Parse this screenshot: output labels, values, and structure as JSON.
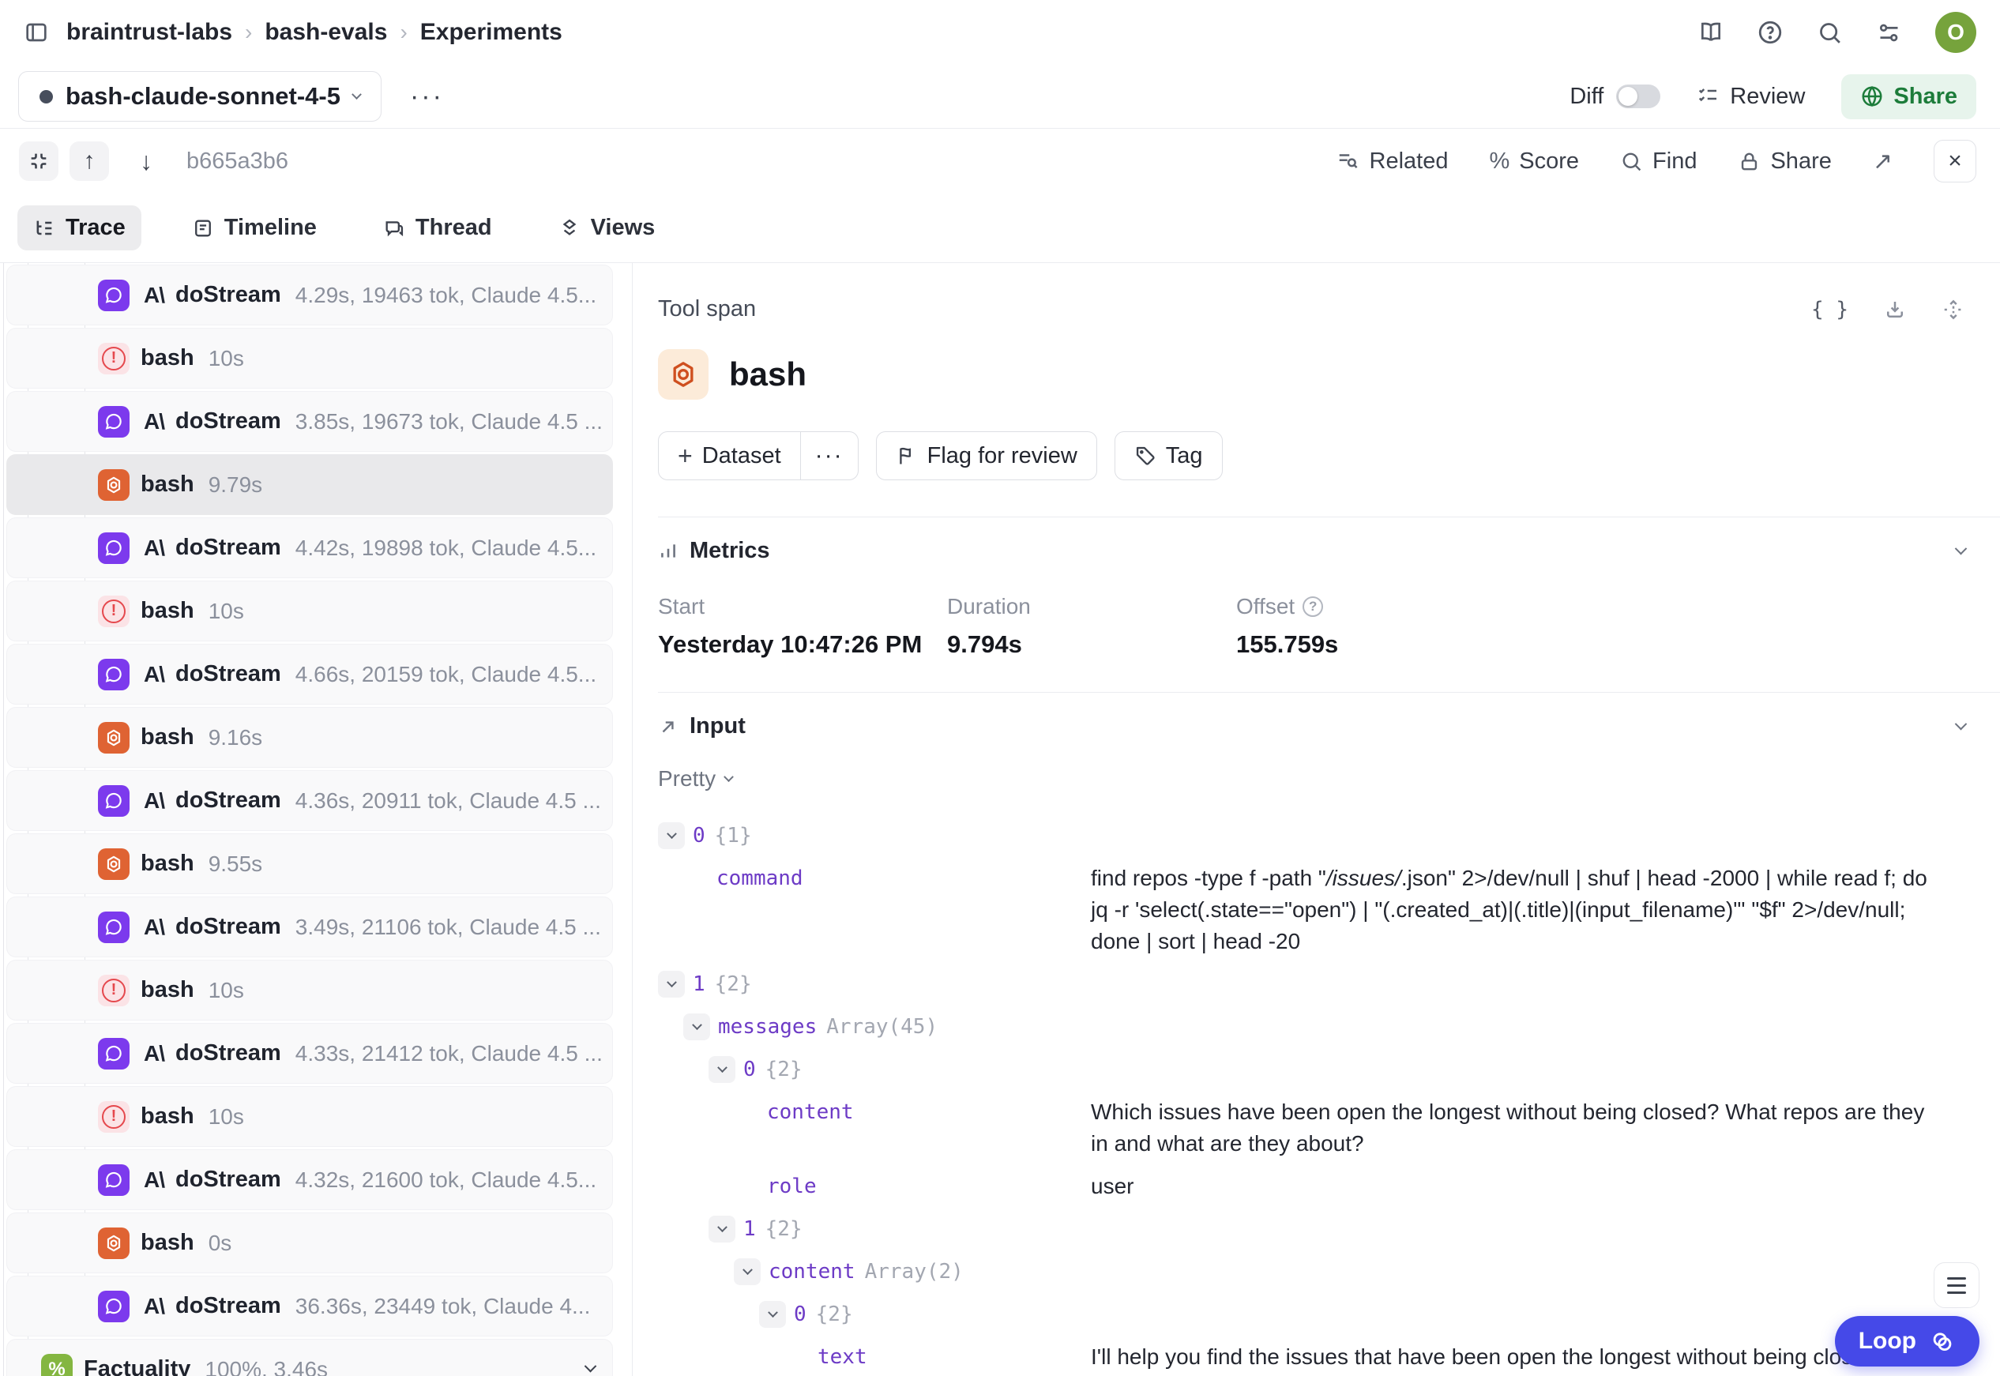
{
  "header": {
    "breadcrumb": [
      "braintrust-labs",
      "bash-evals",
      "Experiments"
    ],
    "separator": "›",
    "avatar_initial": "O"
  },
  "experiment_bar": {
    "name": "bash-claude-sonnet-4-5",
    "more_label": "···",
    "diff_label": "Diff",
    "review_label": "Review",
    "share_label": "Share"
  },
  "trace_toolbar": {
    "span_id": "b665a3b6",
    "up_arrow": "↑",
    "down_arrow": "↓",
    "related_label": "Related",
    "score_label": "Score",
    "score_icon": "%",
    "find_label": "Find",
    "share_label": "Share",
    "external_arrow": "↗",
    "close_glyph": "×"
  },
  "tabs": [
    {
      "label": "Trace",
      "active": true
    },
    {
      "label": "Timeline",
      "active": false
    },
    {
      "label": "Thread",
      "active": false
    },
    {
      "label": "Views",
      "active": false
    }
  ],
  "span_list": {
    "rows": [
      {
        "icon": "model",
        "name": "doStream",
        "detail": "4.29s, 19463 tok, Claude 4.5...",
        "level": 2
      },
      {
        "icon": "error",
        "name": "bash",
        "detail": "10s",
        "level": 2
      },
      {
        "icon": "model",
        "name": "doStream",
        "detail": "3.85s, 19673 tok, Claude 4.5 ...",
        "level": 2
      },
      {
        "icon": "tool",
        "name": "bash",
        "detail": "9.79s",
        "level": 2,
        "selected": true
      },
      {
        "icon": "model",
        "name": "doStream",
        "detail": "4.42s, 19898 tok, Claude 4.5...",
        "level": 2
      },
      {
        "icon": "error",
        "name": "bash",
        "detail": "10s",
        "level": 2
      },
      {
        "icon": "model",
        "name": "doStream",
        "detail": "4.66s, 20159 tok, Claude 4.5...",
        "level": 2
      },
      {
        "icon": "tool",
        "name": "bash",
        "detail": "9.16s",
        "level": 2
      },
      {
        "icon": "model",
        "name": "doStream",
        "detail": "4.36s, 20911 tok, Claude 4.5 ...",
        "level": 2
      },
      {
        "icon": "tool",
        "name": "bash",
        "detail": "9.55s",
        "level": 2
      },
      {
        "icon": "model",
        "name": "doStream",
        "detail": "3.49s, 21106 tok, Claude 4.5 ...",
        "level": 2
      },
      {
        "icon": "error",
        "name": "bash",
        "detail": "10s",
        "level": 2
      },
      {
        "icon": "model",
        "name": "doStream",
        "detail": "4.33s, 21412 tok, Claude 4.5 ...",
        "level": 2
      },
      {
        "icon": "error",
        "name": "bash",
        "detail": "10s",
        "level": 2
      },
      {
        "icon": "model",
        "name": "doStream",
        "detail": "4.32s, 21600 tok, Claude 4.5...",
        "level": 2
      },
      {
        "icon": "tool",
        "name": "bash",
        "detail": "0s",
        "level": 2
      },
      {
        "icon": "model",
        "name": "doStream",
        "detail": "36.36s, 23449 tok, Claude 4...",
        "level": 2
      },
      {
        "icon": "score",
        "name": "Factuality",
        "detail": "100%, 3.46s",
        "level": 1,
        "chevron": true
      }
    ],
    "anthropic_mark": "A\\",
    "score_icon_glyph": "%"
  },
  "detail": {
    "kind_label": "Tool span",
    "title": "bash",
    "actions": {
      "dataset_label": "Dataset",
      "dataset_plus": "+",
      "dataset_more": "···",
      "flag_label": "Flag for review",
      "tag_label": "Tag"
    },
    "metrics": {
      "title": "Metrics",
      "columns": [
        {
          "label": "Start",
          "value": "Yesterday 10:47:26 PM"
        },
        {
          "label": "Duration",
          "value": "9.794s"
        },
        {
          "label": "Offset",
          "value": "155.759s",
          "info": true
        }
      ]
    },
    "input": {
      "title": "Input",
      "mode": "Pretty",
      "tree": [
        {
          "level": 0,
          "chevron": true,
          "key": "0",
          "suffix": "{1}"
        },
        {
          "level": 1,
          "leaf": true,
          "key": "command",
          "value_parts": [
            {
              "t": "find repos -type f -path \""
            },
            {
              "t": "/issues/",
              "em": true
            },
            {
              "t": ".json\" 2>/dev/null | shuf | head -2000 | while read f; do jq -r 'select(.state==\"open\") | \"(.created_at)|(.title)|(input_filename)\"' \"$f\" 2>/dev/null; done | sort | head -20"
            }
          ]
        },
        {
          "level": 0,
          "chevron": true,
          "key": "1",
          "suffix": "{2}"
        },
        {
          "level": 1,
          "chevron": true,
          "key": "messages",
          "suffix": "Array(45)"
        },
        {
          "level": 2,
          "chevron": true,
          "key": "0",
          "suffix": "{2}"
        },
        {
          "level": 3,
          "leaf": true,
          "key": "content",
          "value": "Which issues have been open the longest without being closed? What repos are they in and what are they about?"
        },
        {
          "level": 3,
          "leaf": true,
          "key": "role",
          "value": "user"
        },
        {
          "level": 2,
          "chevron": true,
          "key": "1",
          "suffix": "{2}"
        },
        {
          "level": 3,
          "chevron": true,
          "key": "content",
          "suffix": "Array(2)"
        },
        {
          "level": 4,
          "chevron": true,
          "key": "0",
          "suffix": "{2}"
        },
        {
          "level": 5,
          "leaf": true,
          "key": "text",
          "value": "I'll help you find the issues that have been open the longest without being closed. Let me start by exploring the data structure and then identify these long-standing issues."
        }
      ]
    },
    "json_icon": "{ }"
  },
  "loop_button": {
    "label": "Loop"
  },
  "colors": {
    "model_icon_bg": "#7c3aed",
    "tool_icon_bg": "#df6333",
    "error_icon_bg": "#fbe3e6",
    "error_icon_fg": "#e5484d",
    "score_icon_bg": "#84b641",
    "avatar_bg": "#76a33c",
    "share_bg": "#e7f4ec",
    "share_fg": "#1c7c3a",
    "loop_bg": "#4549e8",
    "selected_row_bg": "#e9e9eb",
    "key_purple": "#6d3bc6",
    "muted_text": "#8b909c",
    "border": "#ebecf0"
  }
}
